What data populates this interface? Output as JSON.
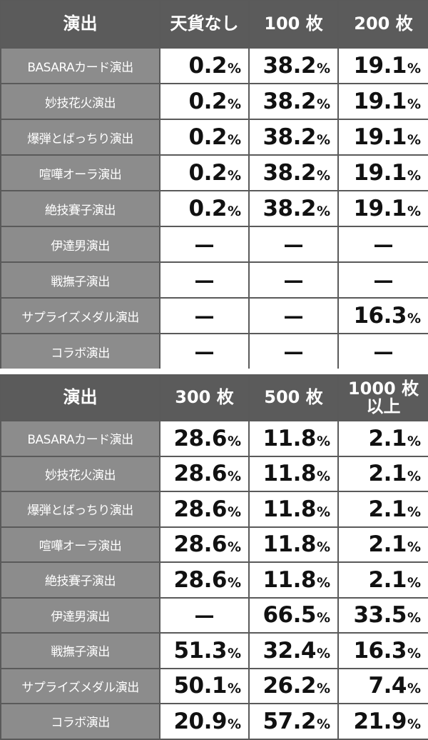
{
  "tables": [
    {
      "headers": [
        "演出",
        "天貨なし",
        "100 枚",
        "200 枚"
      ],
      "rows": [
        {
          "label": "BASARAカード演出",
          "cells": [
            "0.2",
            "38.2",
            "19.1"
          ]
        },
        {
          "label": "妙技花火演出",
          "cells": [
            "0.2",
            "38.2",
            "19.1"
          ]
        },
        {
          "label": "爆弾とばっちり演出",
          "cells": [
            "0.2",
            "38.2",
            "19.1"
          ]
        },
        {
          "label": "喧嘩オーラ演出",
          "cells": [
            "0.2",
            "38.2",
            "19.1"
          ]
        },
        {
          "label": "絶技賽子演出",
          "cells": [
            "0.2",
            "38.2",
            "19.1"
          ]
        },
        {
          "label": "伊達男演出",
          "cells": [
            "—",
            "—",
            "—"
          ]
        },
        {
          "label": "戦撫子演出",
          "cells": [
            "—",
            "—",
            "—"
          ]
        },
        {
          "label": "サプライズメダル演出",
          "cells": [
            "—",
            "—",
            "16.3"
          ]
        },
        {
          "label": "コラボ演出",
          "cells": [
            "—",
            "—",
            "—"
          ]
        }
      ]
    },
    {
      "headers": [
        "演出",
        "300 枚",
        "500 枚",
        "1000 枚\n以上"
      ],
      "rows": [
        {
          "label": "BASARAカード演出",
          "cells": [
            "28.6",
            "11.8",
            "2.1"
          ]
        },
        {
          "label": "妙技花火演出",
          "cells": [
            "28.6",
            "11.8",
            "2.1"
          ]
        },
        {
          "label": "爆弾とばっちり演出",
          "cells": [
            "28.6",
            "11.8",
            "2.1"
          ]
        },
        {
          "label": "喧嘩オーラ演出",
          "cells": [
            "28.6",
            "11.8",
            "2.1"
          ]
        },
        {
          "label": "絶技賽子演出",
          "cells": [
            "28.6",
            "11.8",
            "2.1"
          ]
        },
        {
          "label": "伊達男演出",
          "cells": [
            "—",
            "66.5",
            "33.5"
          ]
        },
        {
          "label": "戦撫子演出",
          "cells": [
            "51.3",
            "32.4",
            "16.3"
          ]
        },
        {
          "label": "サプライズメダル演出",
          "cells": [
            "50.1",
            "26.2",
            "7.4"
          ]
        },
        {
          "label": "コラボ演出",
          "cells": [
            "20.9",
            "57.2",
            "21.9"
          ]
        }
      ]
    }
  ],
  "percent_sign": "%"
}
